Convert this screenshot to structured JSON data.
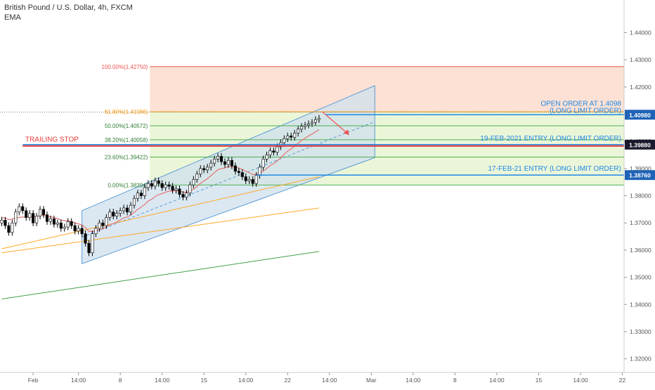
{
  "legend": {
    "title": "British Pound / U.S. Dollar, 4h, FXCM",
    "indicator": "EMA"
  },
  "colors": {
    "up_candle": "#ffffff",
    "down_candle": "#000000",
    "candle_outline": "#000000",
    "channel_fill": "#cfe0ee",
    "channel_line": "#5b9bd5",
    "fib_line": "#4caf50",
    "fib_100_line": "#ef5350",
    "fib_top_fill": "#fbd9c9",
    "fib_low_fill": "#e9f5d4",
    "trailing_stop": "#e53935",
    "entry_line": "#1e88e5",
    "ema_short": "#e57373",
    "ema_mid": "#ffa726",
    "ema_long": "#43a047",
    "axis_text": "#555555",
    "price_tag_bg": "#1e63b6",
    "price_tag_dark": "#1a1a2e"
  },
  "chart_data": {
    "type": "candlestick",
    "title": "British Pound / U.S. Dollar, 4h, FXCM",
    "ylim": [
      1.315,
      1.452
    ],
    "y_ticks": [
      "1.44000",
      "1.43000",
      "1.42000",
      "1.41000",
      "1.40000",
      "1.39000",
      "1.38000",
      "1.37000",
      "1.36000",
      "1.35000",
      "1.34000",
      "1.33000",
      "1.32000"
    ],
    "x_ticks": [
      {
        "label": "Feb",
        "slot": 9
      },
      {
        "label": "14:00",
        "slot": 22
      },
      {
        "label": "8",
        "slot": 34
      },
      {
        "label": "14:00",
        "slot": 46
      },
      {
        "label": "15",
        "slot": 58
      },
      {
        "label": "14:00",
        "slot": 70
      },
      {
        "label": "22",
        "slot": 82
      },
      {
        "label": "14:00",
        "slot": 94
      },
      {
        "label": "Mar",
        "slot": 106
      },
      {
        "label": "14:00",
        "slot": 118
      },
      {
        "label": "8",
        "slot": 130
      },
      {
        "label": "14:00",
        "slot": 142
      },
      {
        "label": "15",
        "slot": 154
      },
      {
        "label": "14:00",
        "slot": 166
      },
      {
        "label": "22",
        "slot": 178
      }
    ],
    "slots_total": 179,
    "closes": [
      1.371,
      1.369,
      1.3665,
      1.37,
      1.374,
      1.376,
      1.3745,
      1.372,
      1.3735,
      1.37,
      1.3725,
      1.375,
      1.373,
      1.3705,
      1.3715,
      1.3695,
      1.37,
      1.368,
      1.3685,
      1.3705,
      1.369,
      1.367,
      1.368,
      1.366,
      1.3625,
      1.359,
      1.366,
      1.368,
      1.37,
      1.369,
      1.372,
      1.374,
      1.3725,
      1.3735,
      1.3745,
      1.3755,
      1.374,
      1.3765,
      1.379,
      1.381,
      1.38,
      1.383,
      1.3845,
      1.3835,
      1.3855,
      1.3845,
      1.383,
      1.384,
      1.3835,
      1.382,
      1.3825,
      1.3805,
      1.3795,
      1.381,
      1.384,
      1.386,
      1.388,
      1.39,
      1.3895,
      1.3905,
      1.392,
      1.3935,
      1.3945,
      1.3925,
      1.3915,
      1.393,
      1.391,
      1.389,
      1.3885,
      1.387,
      1.3855,
      1.386,
      1.3845,
      1.3875,
      1.3905,
      1.3935,
      1.395,
      1.3965,
      1.396,
      1.398,
      1.3995,
      1.401,
      1.402,
      1.4015,
      1.403,
      1.4045,
      1.4055,
      1.406,
      1.4065,
      1.407,
      1.408,
      1.4085
    ],
    "ema_short": [
      1.372,
      1.3718,
      1.3712,
      1.3714,
      1.3718,
      1.372,
      1.3722,
      1.3721,
      1.3724,
      1.3722,
      1.3723,
      1.3728,
      1.3728,
      1.3724,
      1.3723,
      1.3719,
      1.3716,
      1.3711,
      1.3708,
      1.3708,
      1.3705,
      1.37,
      1.3697,
      1.3692,
      1.3683,
      1.3669,
      1.3668,
      1.367,
      1.3675,
      1.3678,
      1.3685,
      1.3693,
      1.3698,
      1.3704,
      1.3711,
      1.3718,
      1.3722,
      1.3729,
      1.3739,
      1.375,
      1.3758,
      1.3768,
      1.378,
      1.3787,
      1.3797,
      1.3804,
      1.3808,
      1.3813,
      1.3817,
      1.3817,
      1.3819,
      1.3817,
      1.3813,
      1.3813,
      1.3817,
      1.3824,
      1.3834,
      1.3846,
      1.3854,
      1.3863,
      1.3874,
      1.3885,
      1.3896,
      1.39,
      1.3902,
      1.3907,
      1.3907,
      1.3905,
      1.3902,
      1.3897,
      1.389,
      1.3885,
      1.3878,
      1.3878,
      1.3882,
      1.3891,
      1.39,
      1.3911,
      1.3918,
      1.3928,
      1.3939,
      1.3952,
      1.3964,
      1.3972,
      1.3983,
      1.3993,
      1.4003,
      1.4012,
      1.402,
      1.4027,
      1.4035,
      1.4043
    ],
    "ema_mid": {
      "start_slot": 0,
      "end_slot": 91,
      "start_value": 1.3605,
      "end_value": 1.387
    },
    "ema_slow": {
      "start_slot": 0,
      "end_slot": 91,
      "start_value": 1.359,
      "end_value": 1.3755
    },
    "ema_long": {
      "start_slot": 0,
      "end_slot": 91,
      "start_value": 1.342,
      "end_value": 1.3595
    },
    "channel": {
      "start_slot": 23,
      "end_slot": 107,
      "lower_start": 1.355,
      "lower_end": 1.394,
      "upper_start": 1.3745,
      "upper_end": 1.4205
    },
    "fib_levels": [
      {
        "label": "100.00%(1.42750)",
        "value": 1.4275
      },
      {
        "label": "61.80%(1.41086)",
        "value": 1.41086
      },
      {
        "label": "50.00%(1.40572)",
        "value": 1.40572
      },
      {
        "label": "38.20%(1.40058)",
        "value": 1.40058
      },
      {
        "label": "23.60%(1.39422)",
        "value": 1.39422
      },
      {
        "label": "0.00%(1.38394)",
        "value": 1.38394
      }
    ],
    "fib_start_slot": 43,
    "lines": [
      {
        "name": "trailing-stop",
        "label": "TRAILING STOP",
        "value": 1.3983,
        "start_slot": 6
      },
      {
        "name": "open-order",
        "label_1": "OPEN ORDER AT 1.4098",
        "label_2": "(LONG LIMIT ORDER)",
        "value": 1.4098,
        "start_slot": 93
      },
      {
        "name": "entry-19-feb",
        "label": "19-FEB-2021 ENTRY (LONG LIMIT ORDER)",
        "value": 1.3988,
        "start_slot": 6
      },
      {
        "name": "entry-17-feb",
        "label": "17-FEB-21 ENTRY (LONG LIMIT ORDER)",
        "value": 1.3876,
        "start_slot": 73
      }
    ],
    "price_tags": [
      {
        "label": "1.40980",
        "value": 1.4098
      },
      {
        "label": "1.39880",
        "value": 1.3988
      },
      {
        "label": "1.38760",
        "value": 1.3876
      }
    ],
    "current_price": 1.4108
  }
}
